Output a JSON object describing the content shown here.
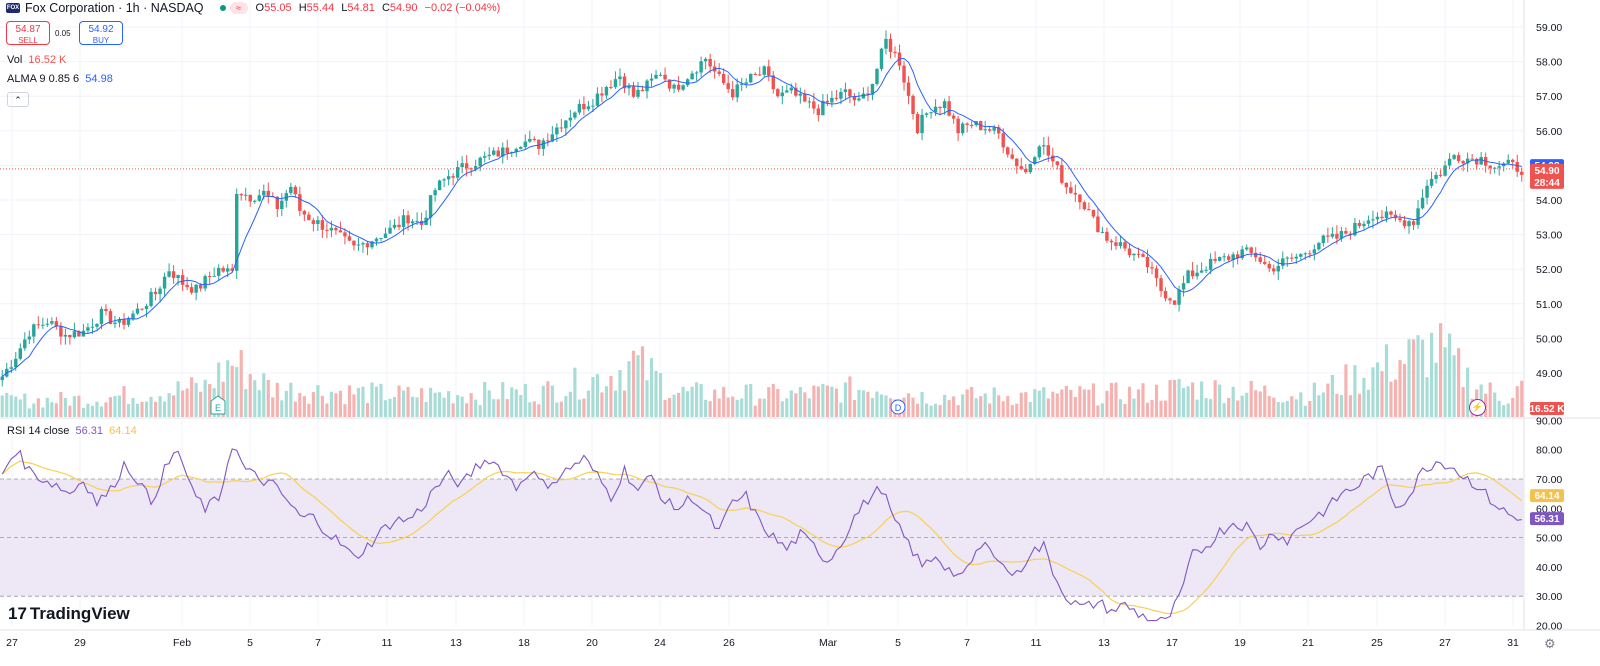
{
  "header": {
    "symbol_line": "Fox Corporation · 1h · NASDAQ",
    "logo_text": "FOX",
    "open_label": "O",
    "open": "55.05",
    "high_label": "H",
    "high": "55.44",
    "low_label": "L",
    "low": "54.81",
    "close_label": "C",
    "close": "54.90",
    "change": "−0.02 (−0.04%)",
    "pill": "≈"
  },
  "trade": {
    "sell_price": "54.87",
    "sell_label": "SELL",
    "spread": "0.05",
    "buy_price": "54.92",
    "buy_label": "BUY"
  },
  "indicators": {
    "vol_label": "Vol",
    "vol_value": "16.52 K",
    "alma_label": "ALMA 9 0.85 6",
    "alma_value": "54.98",
    "rsi_label": "RSI 14 close",
    "rsi_value": "56.31",
    "rsi_ma_value": "64.14"
  },
  "collapse_icon": "chevron-up-icon",
  "watermark": "TradingView",
  "colors": {
    "up": "#26a69a",
    "down": "#ef5350",
    "alma": "#2962ff",
    "rsi": "#7e57c2",
    "rsi_ma": "#f7d154",
    "rsi_band": "#ede7f6"
  },
  "chart_data": {
    "type": "candlestick",
    "price_axis": {
      "ticks": [
        "59.00",
        "58.00",
        "57.00",
        "56.00",
        "55.00",
        "54.00",
        "53.00",
        "52.00",
        "51.00",
        "50.00",
        "49.00"
      ],
      "range": [
        48.7,
        59.2
      ]
    },
    "rsi_axis": {
      "ticks": [
        "90.00",
        "80.00",
        "70.00",
        "60.00",
        "50.00",
        "40.00",
        "30.00",
        "20.00"
      ],
      "range": [
        16,
        90
      ],
      "levels": [
        70,
        50,
        30
      ]
    },
    "price_badges": {
      "alma": "54.98",
      "last": "54.90",
      "countdown": "28:44",
      "volume": "16.52 K",
      "rsi_ma": "64.14",
      "rsi": "56.31"
    },
    "x_labels": [
      "27",
      "29",
      "Feb",
      "5",
      "7",
      "11",
      "13",
      "18",
      "20",
      "24",
      "26",
      "Mar",
      "5",
      "7",
      "11",
      "13",
      "17",
      "19",
      "21",
      "25",
      "27",
      "31"
    ],
    "event_markers": [
      {
        "label": "E",
        "day": "Feb 3"
      },
      {
        "label": "D",
        "day": "Mar 4"
      }
    ],
    "price_anchors": [
      [
        0,
        48.9
      ],
      [
        3,
        49.5
      ],
      [
        6,
        50.2
      ],
      [
        10,
        50.5
      ],
      [
        14,
        50.1
      ],
      [
        18,
        50.2
      ],
      [
        22,
        50.7
      ],
      [
        26,
        50.4
      ],
      [
        30,
        50.8
      ],
      [
        34,
        51.3
      ],
      [
        37,
        52.0
      ],
      [
        40,
        51.6
      ],
      [
        43,
        51.4
      ],
      [
        46,
        51.8
      ],
      [
        48,
        52.0
      ],
      [
        51,
        51.9
      ],
      [
        52,
        54.3
      ],
      [
        55,
        54.1
      ],
      [
        58,
        54.2
      ],
      [
        61,
        53.8
      ],
      [
        64,
        54.4
      ],
      [
        66,
        53.7
      ],
      [
        69,
        53.4
      ],
      [
        72,
        53.2
      ],
      [
        75,
        52.9
      ],
      [
        78,
        52.6
      ],
      [
        81,
        52.8
      ],
      [
        84,
        53.0
      ],
      [
        87,
        53.2
      ],
      [
        90,
        53.5
      ],
      [
        93,
        53.3
      ],
      [
        96,
        54.3
      ],
      [
        99,
        54.7
      ],
      [
        103,
        55.0
      ],
      [
        107,
        55.2
      ],
      [
        111,
        55.4
      ],
      [
        115,
        55.7
      ],
      [
        119,
        55.6
      ],
      [
        123,
        56.1
      ],
      [
        127,
        56.6
      ],
      [
        131,
        56.9
      ],
      [
        134,
        57.3
      ],
      [
        137,
        57.6
      ],
      [
        140,
        57.0
      ],
      [
        143,
        57.3
      ],
      [
        146,
        57.7
      ],
      [
        149,
        57.2
      ],
      [
        152,
        57.6
      ],
      [
        156,
        58.1
      ],
      [
        159,
        57.5
      ],
      [
        162,
        57.1
      ],
      [
        166,
        57.5
      ],
      [
        169,
        57.7
      ],
      [
        172,
        57.0
      ],
      [
        175,
        57.1
      ],
      [
        178,
        56.8
      ],
      [
        181,
        56.6
      ],
      [
        184,
        56.9
      ],
      [
        187,
        57.1
      ],
      [
        190,
        56.8
      ],
      [
        193,
        57.4
      ],
      [
        196,
        58.6
      ],
      [
        199,
        58.0
      ],
      [
        201,
        57.0
      ],
      [
        203,
        56.1
      ],
      [
        206,
        56.7
      ],
      [
        209,
        56.8
      ],
      [
        212,
        56.0
      ],
      [
        215,
        56.2
      ],
      [
        218,
        56.1
      ],
      [
        221,
        55.9
      ],
      [
        224,
        55.2
      ],
      [
        227,
        54.8
      ],
      [
        230,
        55.7
      ],
      [
        233,
        55.1
      ],
      [
        236,
        54.4
      ],
      [
        239,
        54.1
      ],
      [
        242,
        53.4
      ],
      [
        245,
        52.9
      ],
      [
        248,
        52.7
      ],
      [
        251,
        52.4
      ],
      [
        254,
        52.1
      ],
      [
        257,
        51.4
      ],
      [
        260,
        51.1
      ],
      [
        263,
        51.8
      ],
      [
        267,
        52.1
      ],
      [
        271,
        52.3
      ],
      [
        275,
        52.5
      ],
      [
        278,
        52.4
      ],
      [
        281,
        52.0
      ],
      [
        284,
        52.2
      ],
      [
        288,
        52.4
      ],
      [
        292,
        52.8
      ],
      [
        296,
        52.9
      ],
      [
        300,
        53.2
      ],
      [
        304,
        53.6
      ],
      [
        307,
        53.5
      ],
      [
        310,
        53.4
      ],
      [
        313,
        53.4
      ],
      [
        316,
        54.5
      ],
      [
        319,
        54.8
      ],
      [
        322,
        55.3
      ],
      [
        325,
        55.2
      ],
      [
        328,
        55.2
      ],
      [
        331,
        55.0
      ],
      [
        334,
        55.0
      ],
      [
        337,
        54.9
      ]
    ],
    "rsi_anchors": [
      [
        0,
        72
      ],
      [
        3,
        80
      ],
      [
        6,
        73
      ],
      [
        9,
        70
      ],
      [
        12,
        68
      ],
      [
        15,
        65
      ],
      [
        18,
        70
      ],
      [
        21,
        62
      ],
      [
        24,
        66
      ],
      [
        27,
        75
      ],
      [
        30,
        70
      ],
      [
        33,
        62
      ],
      [
        36,
        73
      ],
      [
        39,
        80
      ],
      [
        42,
        66
      ],
      [
        45,
        60
      ],
      [
        48,
        63
      ],
      [
        51,
        82
      ],
      [
        54,
        73
      ],
      [
        57,
        70
      ],
      [
        60,
        68
      ],
      [
        63,
        63
      ],
      [
        66,
        57
      ],
      [
        69,
        57
      ],
      [
        72,
        52
      ],
      [
        75,
        48
      ],
      [
        78,
        43
      ],
      [
        81,
        47
      ],
      [
        84,
        52
      ],
      [
        87,
        56
      ],
      [
        90,
        56
      ],
      [
        93,
        60
      ],
      [
        96,
        67
      ],
      [
        99,
        71
      ],
      [
        102,
        68
      ],
      [
        105,
        74
      ],
      [
        108,
        77
      ],
      [
        111,
        73
      ],
      [
        114,
        67
      ],
      [
        117,
        73
      ],
      [
        120,
        68
      ],
      [
        123,
        70
      ],
      [
        126,
        74
      ],
      [
        129,
        77
      ],
      [
        132,
        71
      ],
      [
        135,
        64
      ],
      [
        138,
        73
      ],
      [
        141,
        66
      ],
      [
        144,
        71
      ],
      [
        147,
        62
      ],
      [
        150,
        60
      ],
      [
        153,
        64
      ],
      [
        156,
        58
      ],
      [
        159,
        52
      ],
      [
        162,
        62
      ],
      [
        165,
        64
      ],
      [
        168,
        55
      ],
      [
        171,
        50
      ],
      [
        174,
        46
      ],
      [
        177,
        51
      ],
      [
        180,
        47
      ],
      [
        183,
        42
      ],
      [
        186,
        48
      ],
      [
        189,
        57
      ],
      [
        192,
        63
      ],
      [
        195,
        67
      ],
      [
        198,
        55
      ],
      [
        201,
        48
      ],
      [
        204,
        40
      ],
      [
        207,
        44
      ],
      [
        210,
        39
      ],
      [
        213,
        36
      ],
      [
        216,
        45
      ],
      [
        219,
        48
      ],
      [
        222,
        40
      ],
      [
        225,
        37
      ],
      [
        228,
        45
      ],
      [
        231,
        47
      ],
      [
        234,
        35
      ],
      [
        237,
        28
      ],
      [
        240,
        26
      ],
      [
        243,
        28
      ],
      [
        246,
        25
      ],
      [
        249,
        27
      ],
      [
        252,
        24
      ],
      [
        255,
        22
      ],
      [
        258,
        21
      ],
      [
        261,
        29
      ],
      [
        264,
        44
      ],
      [
        267,
        47
      ],
      [
        270,
        52
      ],
      [
        273,
        55
      ],
      [
        276,
        54
      ],
      [
        279,
        47
      ],
      [
        282,
        52
      ],
      [
        285,
        49
      ],
      [
        288,
        54
      ],
      [
        291,
        57
      ],
      [
        294,
        60
      ],
      [
        297,
        65
      ],
      [
        300,
        67
      ],
      [
        303,
        71
      ],
      [
        306,
        73
      ],
      [
        309,
        61
      ],
      [
        312,
        64
      ],
      [
        315,
        73
      ],
      [
        318,
        76
      ],
      [
        321,
        75
      ],
      [
        324,
        71
      ],
      [
        327,
        68
      ],
      [
        330,
        63
      ],
      [
        333,
        59
      ],
      [
        336,
        56
      ]
    ],
    "volume_anchors": [
      [
        0,
        16
      ],
      [
        20,
        18
      ],
      [
        45,
        30
      ],
      [
        51,
        55
      ],
      [
        60,
        28
      ],
      [
        90,
        22
      ],
      [
        120,
        25
      ],
      [
        135,
        42
      ],
      [
        140,
        55
      ],
      [
        150,
        24
      ],
      [
        175,
        22
      ],
      [
        195,
        30
      ],
      [
        205,
        20
      ],
      [
        235,
        22
      ],
      [
        255,
        24
      ],
      [
        262,
        30
      ],
      [
        290,
        22
      ],
      [
        318,
        70
      ],
      [
        326,
        35
      ],
      [
        333,
        18
      ],
      [
        337,
        30
      ]
    ],
    "bar_count": 338
  }
}
